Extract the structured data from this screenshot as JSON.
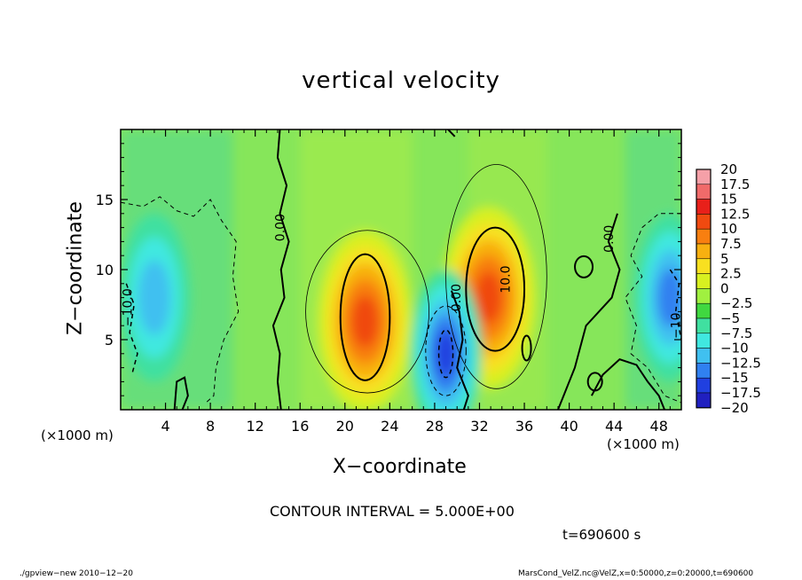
{
  "chart_data": {
    "type": "heatmap",
    "title": "vertical velocity",
    "xlabel": "X−coordinate",
    "ylabel": "Z−coordinate",
    "x_unit_left": "(×1000 m)",
    "x_unit_right": "(×1000 m)",
    "xlim": [
      0,
      50
    ],
    "ylim": [
      0,
      20
    ],
    "x_ticks": [
      4,
      8,
      12,
      16,
      20,
      24,
      28,
      32,
      36,
      40,
      44,
      48
    ],
    "x_tick_labels": [
      "4",
      "8",
      "12",
      "16",
      "20",
      "24",
      "28",
      "32",
      "36",
      "40",
      "44",
      "48"
    ],
    "y_ticks": [
      5,
      10,
      15
    ],
    "y_tick_labels": [
      "5",
      "10",
      "15"
    ],
    "colorbar_levels": [
      20,
      17.5,
      15,
      12.5,
      10,
      7.5,
      5,
      2.5,
      0,
      -2.5,
      -5,
      -7.5,
      -10,
      -12.5,
      -15,
      -17.5,
      -20
    ],
    "colorbar_labels": [
      "20",
      "17.5",
      "15",
      "12.5",
      "10",
      "7.5",
      "5",
      "2.5",
      "0",
      "−2.5",
      "−5",
      "−7.5",
      "−10",
      "−12.5",
      "−15",
      "−17.5",
      "−20"
    ],
    "colorbar_colors": [
      "#f5a0a8",
      "#f06a6a",
      "#e8201a",
      "#f04a10",
      "#f87f10",
      "#f8b010",
      "#f8e020",
      "#d8f020",
      "#a0f040",
      "#40d840",
      "#40e0a0",
      "#40e8e0",
      "#40c0f0",
      "#3080f0",
      "#2040e0",
      "#2020c0",
      "#6020b0"
    ],
    "features": [
      {
        "kind": "updraft",
        "x": 21.8,
        "z": 6.3,
        "peak": 12.5
      },
      {
        "kind": "updraft",
        "x": 32.8,
        "z": 8.0,
        "peak": 12.5
      },
      {
        "kind": "downdraft",
        "x": 29.0,
        "z": 4.0,
        "peak": -12.5
      },
      {
        "kind": "downdraft",
        "x": 3.0,
        "z": 8.0,
        "peak": -7.5
      },
      {
        "kind": "downdraft",
        "x": 49.0,
        "z": 8.0,
        "peak": -10
      }
    ],
    "contour_labels": [
      "0.00",
      "0.00",
      "0.00",
      "10.0",
      "−10.0",
      "−10"
    ],
    "contour_interval_text": "CONTOUR INTERVAL = 5.000E+00"
  },
  "time_text": "t=690600 s",
  "footer_left": "./gpview−new   2010−12−20",
  "footer_right": "MarsCond_VelZ.nc@VelZ,x=0:50000,z=0:20000,t=690600"
}
